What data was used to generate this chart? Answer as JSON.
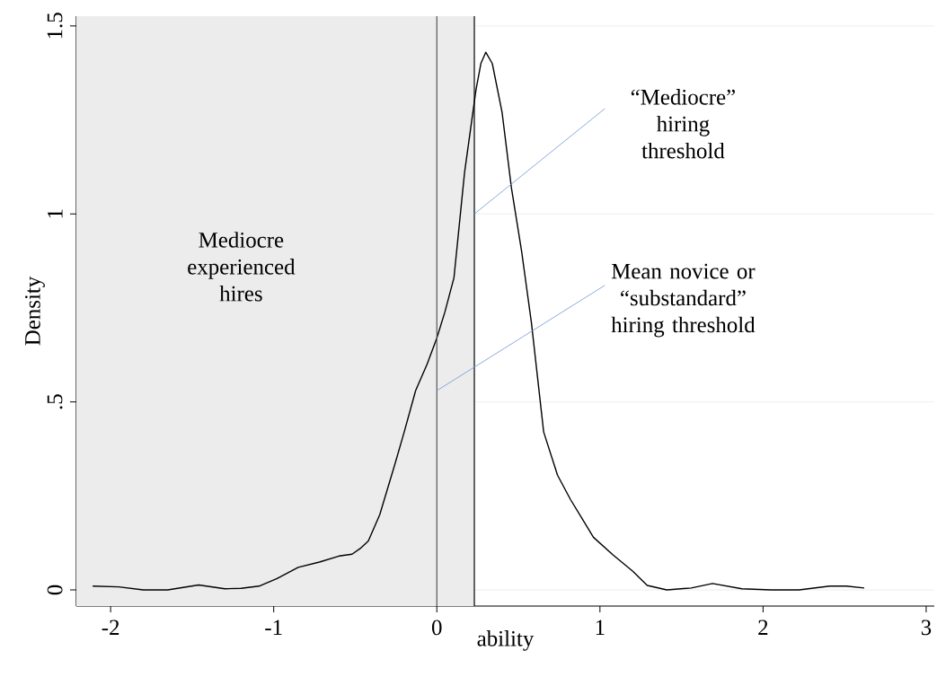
{
  "chart_data": {
    "type": "line",
    "xlabel": "ability",
    "ylabel": "Density",
    "x": [
      -2.11,
      -1.95,
      -1.8,
      -1.65,
      -1.46,
      -1.3,
      -1.2,
      -1.09,
      -0.98,
      -0.85,
      -0.72,
      -0.6,
      -0.52,
      -0.47,
      -0.42,
      -0.35,
      -0.26,
      -0.2,
      -0.13,
      -0.06,
      0.0,
      0.05,
      0.105,
      0.17,
      0.24,
      0.27,
      0.3,
      0.34,
      0.4,
      0.457,
      0.52,
      0.58,
      0.655,
      0.74,
      0.82,
      0.89,
      0.96,
      1.08,
      1.2,
      1.29,
      1.41,
      1.56,
      1.69,
      1.87,
      2.05,
      2.22,
      2.41,
      2.51,
      2.62
    ],
    "series": [
      {
        "color": "#000000",
        "values": [
          0.01,
          0.008,
          0.0,
          0.0,
          0.013,
          0.003,
          0.004,
          0.01,
          0.03,
          0.06,
          0.074,
          0.09,
          0.095,
          0.11,
          0.13,
          0.2,
          0.33,
          0.42,
          0.53,
          0.6,
          0.67,
          0.74,
          0.83,
          1.11,
          1.33,
          1.4,
          1.43,
          1.4,
          1.27,
          1.07,
          0.9,
          0.71,
          0.42,
          0.305,
          0.24,
          0.19,
          0.14,
          0.093,
          0.05,
          0.012,
          0.0,
          0.005,
          0.017,
          0.003,
          0.0,
          0.0,
          0.01,
          0.01,
          0.005
        ]
      }
    ],
    "xlim": [
      -2.21,
      3.05
    ],
    "ylim": [
      -0.043,
      1.526
    ],
    "xticks": [
      -2,
      -1,
      0,
      1,
      2,
      3
    ],
    "yticks": [
      0,
      {
        "value": 0.5,
        "label": ".5"
      },
      1,
      1.5
    ],
    "grid": "y",
    "ref_lines": [
      {
        "axis": "x",
        "value": 0,
        "color": "#555555"
      },
      {
        "axis": "x",
        "value": 0.23,
        "color": "#000000"
      }
    ],
    "bands": [
      {
        "axis": "x",
        "from": -2.21,
        "to": 0.23,
        "color": "#ececec"
      }
    ],
    "annotations": [
      "Mediocre experienced hires",
      {
        "text": "“Mediocre” hiring threshold",
        "x": 0.23,
        "y": 1.0
      },
      {
        "text": "Mean novice or “substandard” hiring threshold",
        "x": 0,
        "y": 0.53
      }
    ]
  }
}
